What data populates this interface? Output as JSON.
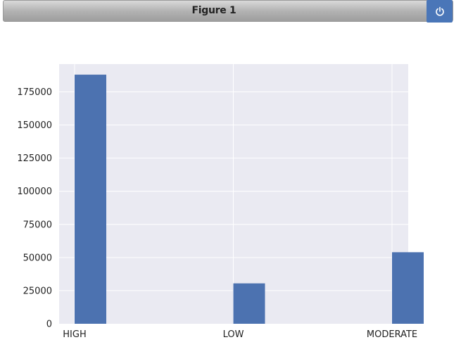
{
  "window": {
    "title": "Figure 1",
    "power_button_icon": "power-icon",
    "accent_color": "#4a76b8"
  },
  "chart_data": {
    "type": "bar",
    "categories": [
      "HIGH",
      "LOW",
      "MODERATE"
    ],
    "values": [
      188000,
      30500,
      54000
    ],
    "ylim": [
      0,
      196000
    ],
    "yticks": [
      0,
      25000,
      50000,
      75000,
      100000,
      125000,
      150000,
      175000
    ],
    "grid": true,
    "bar_color": "#4c72b0",
    "plot_background": "#eaeaf2",
    "title": "",
    "xlabel": "",
    "ylabel": ""
  }
}
